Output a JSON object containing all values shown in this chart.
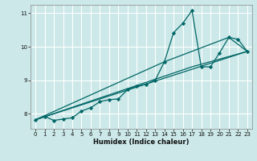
{
  "xlabel": "Humidex (Indice chaleur)",
  "bg_color": "#cce8e8",
  "grid_color": "#ffffff",
  "line_color": "#006666",
  "xlim": [
    -0.5,
    23.5
  ],
  "ylim": [
    7.55,
    11.25
  ],
  "xticks": [
    0,
    1,
    2,
    3,
    4,
    5,
    6,
    7,
    8,
    9,
    10,
    11,
    12,
    13,
    14,
    15,
    16,
    17,
    18,
    19,
    20,
    21,
    22,
    23
  ],
  "yticks": [
    8,
    9,
    10,
    11
  ],
  "main_x": [
    0,
    1,
    2,
    3,
    4,
    5,
    6,
    7,
    8,
    9,
    10,
    11,
    12,
    13,
    14,
    15,
    16,
    17,
    18,
    19,
    20,
    21,
    22,
    23
  ],
  "main_y": [
    7.82,
    7.92,
    7.8,
    7.84,
    7.88,
    8.08,
    8.18,
    8.36,
    8.42,
    8.44,
    8.72,
    8.82,
    8.88,
    9.0,
    9.55,
    10.42,
    10.7,
    11.08,
    9.4,
    9.4,
    9.82,
    10.28,
    10.22,
    9.86
  ],
  "trend1_x": [
    0,
    23
  ],
  "trend1_y": [
    7.82,
    9.86
  ],
  "trend2_x": [
    0,
    17,
    23
  ],
  "trend2_y": [
    7.82,
    9.4,
    9.86
  ],
  "trend3_x": [
    0,
    14,
    21,
    23
  ],
  "trend3_y": [
    7.82,
    9.55,
    10.28,
    9.86
  ]
}
